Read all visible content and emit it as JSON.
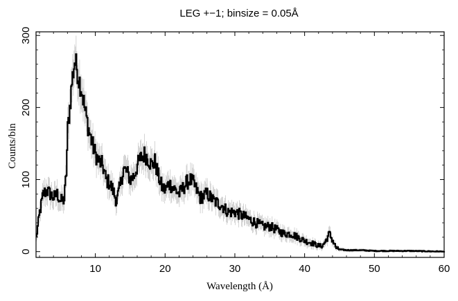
{
  "chart_data": {
    "type": "line",
    "title": "LEG +−1; binsize = 0.05Å",
    "xlabel": "Wavelength (Å)",
    "ylabel": "Counts/bin",
    "xlim": [
      1.5,
      60
    ],
    "ylim": [
      -8,
      305
    ],
    "xticks": [
      10,
      20,
      30,
      40,
      50,
      60
    ],
    "yticks": [
      0,
      100,
      200,
      300
    ],
    "grid": false,
    "series": [
      {
        "color": "#000000",
        "error_color": "#b8b8b8",
        "x": [
          1.5,
          2.0,
          2.5,
          3.0,
          3.5,
          4.0,
          4.5,
          5.0,
          5.5,
          5.8,
          6.0,
          6.3,
          6.6,
          7.0,
          7.3,
          7.6,
          8.0,
          8.5,
          9.0,
          9.5,
          10.0,
          10.5,
          11.0,
          11.5,
          12.0,
          12.5,
          13.0,
          13.5,
          14.0,
          14.5,
          15.0,
          15.5,
          16.0,
          16.5,
          17.0,
          17.5,
          18.0,
          18.5,
          19.0,
          19.5,
          20.0,
          20.5,
          21.0,
          22.0,
          23.0,
          23.5,
          24.0,
          24.5,
          25.0,
          26.0,
          27.0,
          28.0,
          29.0,
          30.0,
          31.0,
          32.0,
          33.0,
          34.0,
          35.0,
          36.0,
          37.0,
          38.0,
          39.0,
          40.0,
          41.0,
          42.0,
          42.5,
          43.0,
          43.5,
          44.0,
          44.5,
          45.0,
          46.0,
          48.0,
          50.0,
          55.0,
          60.0
        ],
        "y": [
          20,
          55,
          80,
          85,
          80,
          75,
          80,
          70,
          72,
          110,
          170,
          200,
          235,
          265,
          255,
          240,
          225,
          195,
          170,
          150,
          135,
          125,
          120,
          100,
          95,
          85,
          70,
          90,
          115,
          110,
          100,
          105,
          120,
          130,
          135,
          130,
          120,
          125,
          105,
          90,
          85,
          95,
          90,
          80,
          95,
          100,
          95,
          85,
          75,
          80,
          70,
          65,
          55,
          55,
          50,
          45,
          40,
          35,
          35,
          30,
          25,
          25,
          20,
          15,
          12,
          8,
          8,
          15,
          25,
          15,
          5,
          3,
          2,
          2,
          1,
          1,
          0
        ]
      }
    ]
  }
}
